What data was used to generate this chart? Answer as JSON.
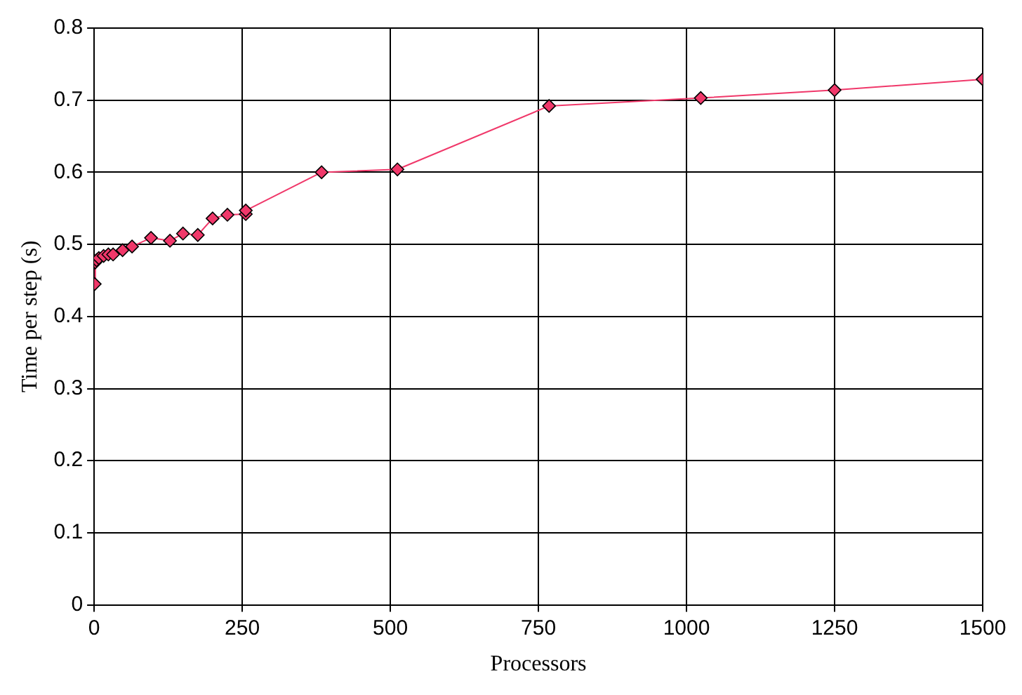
{
  "chart_data": {
    "type": "line",
    "xlabel": "Processors",
    "ylabel": "Time per step (s)",
    "x": [
      1,
      2,
      4,
      8,
      16,
      24,
      32,
      48,
      64,
      96,
      128,
      150,
      175,
      200,
      225,
      256,
      256,
      384,
      512,
      768,
      1024,
      1250,
      1500
    ],
    "series": [
      {
        "color": "#f0386a",
        "values": [
          0.445,
          0.475,
          0.478,
          0.481,
          0.484,
          0.486,
          0.486,
          0.492,
          0.497,
          0.509,
          0.505,
          0.515,
          0.513,
          0.536,
          0.541,
          0.542,
          0.547,
          0.6,
          0.604,
          0.692,
          0.703,
          0.714,
          0.729
        ]
      }
    ],
    "xlim": [
      0,
      1500
    ],
    "xticks": [
      0,
      250,
      500,
      750,
      1000,
      1250,
      1500
    ],
    "ylim": [
      0,
      0.8
    ],
    "yticks": [
      0,
      0.1,
      0.2,
      0.3,
      0.4,
      0.5,
      0.6,
      0.7,
      0.8
    ],
    "grid": true,
    "legend": false,
    "marker": "diamond",
    "line_style": "solid"
  }
}
